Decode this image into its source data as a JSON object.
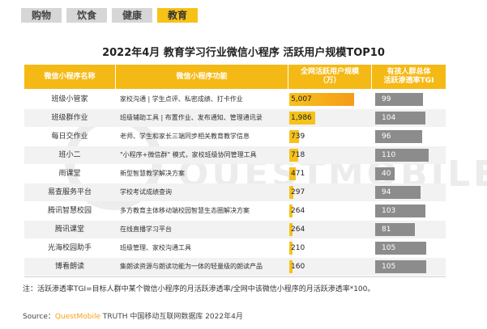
{
  "tabs": [
    {
      "label": "购物",
      "active": false
    },
    {
      "label": "饮食",
      "active": false
    },
    {
      "label": "健康",
      "active": false
    },
    {
      "label": "教育",
      "active": true
    }
  ],
  "headers": {
    "name": "微信小程序名称",
    "func": "微信小程序功能",
    "users": "全网活跃用户规模\n（万）",
    "tgi": "有孩人群总体\n活跃渗透率TGI"
  },
  "watermark": "QUESTMOBILE",
  "note": "注：活跃渗透率TGI=目标人群中某个微信小程序的月活跃渗透率/全网中该微信小程序的月活跃渗透率*100。",
  "source": {
    "prefix": "Source：",
    "brand": "QuestMobile",
    "suffix": " TRUTH 中国移动互联网数据库 2022年4月"
  },
  "colors": {
    "accent": "#f5b916",
    "tgi_bar": "#8c8c8c",
    "tab_inactive": "#d6d6d6"
  },
  "chart_data": {
    "type": "table",
    "title": "2022年4月 教育学习行业微信小程序 活跃用户规模TOP10",
    "columns": [
      "微信小程序名称",
      "微信小程序功能",
      "全网活跃用户规模（万）",
      "有孩人群总体活跃渗透率TGI"
    ],
    "rows": [
      {
        "name": "班级小管家",
        "func": "家校沟通 | 学生点评、私密成绩、打卡作业",
        "users": 5007,
        "users_label": "5,007",
        "tgi": 99
      },
      {
        "name": "班级群作业",
        "func": "班级辅助工具 | 布置作业、发布通知、管理通讯录",
        "users": 1986,
        "users_label": "1,986",
        "tgi": 104
      },
      {
        "name": "每日交作业",
        "func": "老师、学生和家长三端同步相关教育教学信息",
        "users": 739,
        "users_label": "739",
        "tgi": 96
      },
      {
        "name": "班小二",
        "func": "\"小程序+微信群\" 模式，家校班级协同管理工具",
        "users": 718,
        "users_label": "718",
        "tgi": 110
      },
      {
        "name": "雨课堂",
        "func": "新型智慧教学解决方案",
        "users": 471,
        "users_label": "471",
        "tgi": 40
      },
      {
        "name": "易查服务平台",
        "func": "学校考试成绩查询",
        "users": 297,
        "users_label": "297",
        "tgi": 94
      },
      {
        "name": "腾讯智慧校园",
        "func": "多方教育主体移动端校园智慧生态圈解决方案",
        "users": 264,
        "users_label": "264",
        "tgi": 103
      },
      {
        "name": "腾讯课堂",
        "func": "在线直播学习平台",
        "users": 264,
        "users_label": "264",
        "tgi": 81
      },
      {
        "name": "光海校园助手",
        "func": "班级管理、家校沟通工具",
        "users": 210,
        "users_label": "210",
        "tgi": 105
      },
      {
        "name": "博看朗读",
        "func": "集朗读资源与朗读功能为一体的轻量级的朗读产品",
        "users": 160,
        "users_label": "160",
        "tgi": 105
      }
    ]
  }
}
